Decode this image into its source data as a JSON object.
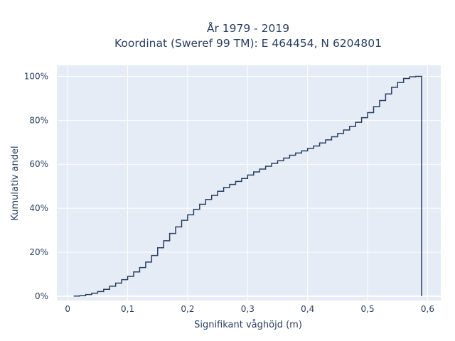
{
  "chart_data": {
    "type": "line",
    "line_shape": "step",
    "title_line1": "År 1979 - 2019",
    "title_line2": "Koordinat (Sweref 99 TM): E 464454, N 6204801",
    "xlabel": "Signifikant våghöjd (m)",
    "ylabel": "Kumulativ andel",
    "xlim": [
      -0.018,
      0.622
    ],
    "ylim": [
      -0.02,
      1.05
    ],
    "x_ticks": [
      0,
      0.1,
      0.2,
      0.3,
      0.4,
      0.5,
      0.6
    ],
    "x_tick_labels": [
      "0",
      "0,1",
      "0,2",
      "0,3",
      "0,4",
      "0,5",
      "0,6"
    ],
    "y_ticks": [
      0,
      0.2,
      0.4,
      0.6,
      0.8,
      1.0
    ],
    "y_tick_labels": [
      "0%",
      "20%",
      "40%",
      "60%",
      "80%",
      "100%"
    ],
    "grid": true,
    "colors": {
      "line": "#2a3f5f",
      "plot_bg": "#e5ecf6",
      "grid": "#ffffff",
      "text": "#2a3f5f"
    },
    "series": [
      {
        "x": [
          0.01,
          0.02,
          0.03,
          0.04,
          0.05,
          0.06,
          0.07,
          0.08,
          0.09,
          0.1,
          0.11,
          0.12,
          0.13,
          0.14,
          0.15,
          0.16,
          0.17,
          0.18,
          0.19,
          0.2,
          0.21,
          0.22,
          0.23,
          0.24,
          0.25,
          0.26,
          0.27,
          0.28,
          0.29,
          0.3,
          0.31,
          0.32,
          0.33,
          0.34,
          0.35,
          0.36,
          0.37,
          0.38,
          0.39,
          0.4,
          0.41,
          0.42,
          0.43,
          0.44,
          0.45,
          0.46,
          0.47,
          0.48,
          0.49,
          0.5,
          0.51,
          0.52,
          0.53,
          0.54,
          0.55,
          0.56,
          0.57,
          0.58,
          0.59
        ],
        "y": [
          0.0,
          0.002,
          0.007,
          0.013,
          0.021,
          0.031,
          0.045,
          0.059,
          0.075,
          0.09,
          0.11,
          0.13,
          0.155,
          0.185,
          0.22,
          0.252,
          0.285,
          0.315,
          0.345,
          0.37,
          0.395,
          0.418,
          0.44,
          0.458,
          0.477,
          0.494,
          0.508,
          0.522,
          0.535,
          0.551,
          0.565,
          0.578,
          0.591,
          0.604,
          0.616,
          0.628,
          0.641,
          0.651,
          0.661,
          0.672,
          0.683,
          0.697,
          0.711,
          0.725,
          0.74,
          0.756,
          0.772,
          0.791,
          0.812,
          0.835,
          0.862,
          0.89,
          0.92,
          0.95,
          0.972,
          0.99,
          0.998,
          1.0,
          0.0
        ]
      }
    ]
  }
}
